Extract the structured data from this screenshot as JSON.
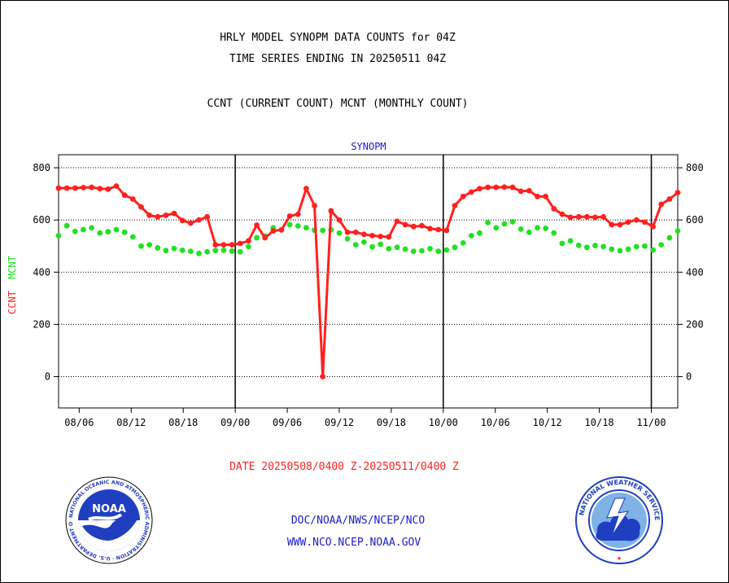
{
  "header": {
    "title_line1": "HRLY MODEL SYNOPM DATA COUNTS for 04Z",
    "title_line2": "TIME SERIES ENDING IN 20250511 04Z",
    "subtitle": "CCNT (CURRENT COUNT) MCNT (MONTHLY COUNT)"
  },
  "footer": {
    "date_range": "DATE 20250508/0400 Z-20250511/0400 Z",
    "org_path": "DOC/NOAA/NWS/NCEP/NCO",
    "website": "WWW.NCO.NCEP.NOAA.GOV"
  },
  "logos": {
    "left": "NOAA",
    "left_ring_text": "NATIONAL OCEANIC AND ATMOSPHERIC ADMINISTRATION · U.S. DEPARTMENT OF COMMERCE",
    "right_ring_text": "NATIONAL WEATHER SERVICE"
  },
  "colors": {
    "ccnt": "#ff2020",
    "mcnt": "#22e022",
    "panel_title": "#1a1acc",
    "footer_red": "#ff2020"
  },
  "chart_data": {
    "type": "line",
    "title": "SYNOPM",
    "ylabel_parts": [
      {
        "text": "CCNT",
        "color": "#ff2020"
      },
      {
        "text": "MCNT",
        "color": "#22e022"
      }
    ],
    "ylim": [
      -120,
      850
    ],
    "yticks": [
      0,
      200,
      400,
      600,
      800
    ],
    "grid": "horizontal dotted at y ticks; solid vertical at month boundaries",
    "month_boundaries": [
      "09/00",
      "10/00",
      "11/00"
    ],
    "x_labels": [
      "08/06",
      "08/12",
      "08/18",
      "09/00",
      "09/06",
      "09/12",
      "09/18",
      "10/00",
      "10/06",
      "10/12",
      "10/18",
      "11/00"
    ],
    "series": [
      {
        "name": "CCNT",
        "marker": "circle",
        "values": [
          722,
          722,
          722,
          724,
          725,
          720,
          718,
          730,
          695,
          680,
          650,
          618,
          612,
          618,
          625,
          598,
          588,
          600,
          612,
          505,
          505,
          505,
          510,
          520,
          580,
          532,
          558,
          562,
          615,
          622,
          720,
          655,
          0,
          635,
          600,
          553,
          553,
          545,
          540,
          537,
          535,
          595,
          582,
          575,
          578,
          567,
          563,
          560,
          655,
          690,
          707,
          720,
          725,
          725,
          726,
          725,
          710,
          712,
          690,
          690,
          643,
          622,
          610,
          612,
          612,
          610,
          612,
          582,
          582,
          592,
          600,
          592,
          575,
          660,
          680,
          705
        ]
      },
      {
        "name": "MCNT",
        "marker": "circle",
        "values": [
          540,
          578,
          556,
          563,
          570,
          550,
          555,
          563,
          553,
          535,
          500,
          505,
          493,
          483,
          491,
          484,
          480,
          472,
          478,
          483,
          484,
          481,
          478,
          498,
          532,
          538,
          570,
          562,
          582,
          577,
          570,
          561,
          560,
          562,
          550,
          528,
          505,
          515,
          497,
          507,
          490,
          495,
          488,
          480,
          482,
          490,
          480,
          485,
          495,
          512,
          540,
          550,
          590,
          570,
          585,
          593,
          565,
          553,
          570,
          568,
          550,
          510,
          520,
          503,
          495,
          502,
          498,
          488,
          482,
          488,
          498,
          500,
          485,
          505,
          532,
          558
        ]
      }
    ]
  }
}
